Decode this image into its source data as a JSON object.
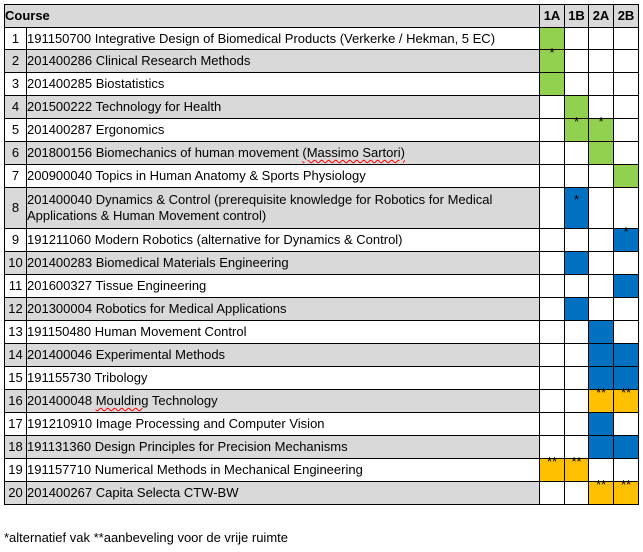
{
  "header": {
    "course": "Course",
    "quarters": [
      "1A",
      "1B",
      "2A",
      "2B"
    ]
  },
  "rows": [
    {
      "num": "1",
      "code": "191150700",
      "title": "Integrative Design of Biomedical Products (Verkerke / Hekman, 5 EC)",
      "cells": [
        "green",
        "",
        "",
        ""
      ],
      "marks": [
        "",
        "",
        "",
        ""
      ]
    },
    {
      "num": "2",
      "code": "201400286",
      "title": "Clinical Research Methods",
      "cells": [
        "green",
        "",
        "",
        ""
      ],
      "marks": [
        "*",
        "",
        "",
        ""
      ]
    },
    {
      "num": "3",
      "code": "201400285",
      "title": "Biostatistics",
      "cells": [
        "green",
        "",
        "",
        ""
      ],
      "marks": [
        "",
        "",
        "",
        ""
      ]
    },
    {
      "num": "4",
      "code": "201500222",
      "title": "Technology for Health",
      "cells": [
        "",
        "green",
        "",
        ""
      ],
      "marks": [
        "",
        "",
        "",
        ""
      ]
    },
    {
      "num": "5",
      "code": "201400287",
      "title": "Ergonomics",
      "cells": [
        "",
        "green",
        "green",
        ""
      ],
      "marks": [
        "",
        "*",
        "*",
        ""
      ]
    },
    {
      "num": "6",
      "code": "201800156",
      "title": "Biomechanics of human movement",
      "title_extra": "(Massimo Sartori)",
      "cells": [
        "",
        "",
        "green",
        ""
      ],
      "marks": [
        "",
        "",
        "",
        ""
      ]
    },
    {
      "num": "7",
      "code": "200900040",
      "title": "Topics in Human Anatomy & Sports Physiology",
      "cells": [
        "",
        "",
        "",
        "green"
      ],
      "marks": [
        "",
        "",
        "",
        ""
      ]
    },
    {
      "num": "8",
      "code": "201400040",
      "title": "Dynamics & Control (prerequisite knowledge for Robotics for Medical Applications & Human Movement control)",
      "cells": [
        "",
        "blue",
        "",
        ""
      ],
      "marks": [
        "",
        "*",
        "",
        ""
      ]
    },
    {
      "num": "9",
      "code": "191211060",
      "title": "Modern Robotics (alternative for Dynamics & Control)",
      "cells": [
        "",
        "",
        "",
        "blue"
      ],
      "marks": [
        "",
        "",
        "",
        "*"
      ]
    },
    {
      "num": "10",
      "code": "201400283",
      "title": "Biomedical Materials Engineering",
      "cells": [
        "",
        "blue",
        "",
        ""
      ],
      "marks": [
        "",
        "",
        "",
        ""
      ]
    },
    {
      "num": "11",
      "code": "201600327",
      "title": "Tissue Engineering",
      "cells": [
        "",
        "",
        "",
        "blue"
      ],
      "marks": [
        "",
        "",
        "",
        ""
      ]
    },
    {
      "num": "12",
      "code": "201300004",
      "title": "Robotics for Medical Applications",
      "cells": [
        "",
        "blue",
        "",
        ""
      ],
      "marks": [
        "",
        "",
        "",
        ""
      ]
    },
    {
      "num": "13",
      "code": "191150480",
      "title": "Human Movement Control",
      "cells": [
        "",
        "",
        "blue",
        ""
      ],
      "marks": [
        "",
        "",
        "",
        ""
      ]
    },
    {
      "num": "14",
      "code": "201400046",
      "title": "Experimental Methods",
      "cells": [
        "",
        "",
        "blue",
        "blue"
      ],
      "marks": [
        "",
        "",
        "",
        ""
      ]
    },
    {
      "num": "15",
      "code": "191155730",
      "title": "Tribology",
      "cells": [
        "",
        "",
        "blue",
        "blue"
      ],
      "marks": [
        "",
        "",
        "",
        ""
      ]
    },
    {
      "num": "16",
      "code": "201400048",
      "title": "Moulding",
      "title_rest": "Technology",
      "cells": [
        "",
        "",
        "orange",
        "orange"
      ],
      "marks": [
        "",
        "",
        "**",
        "**"
      ]
    },
    {
      "num": "17",
      "code": "191210910",
      "title": "Image Processing and Computer Vision",
      "cells": [
        "",
        "",
        "blue",
        ""
      ],
      "marks": [
        "",
        "",
        "",
        ""
      ]
    },
    {
      "num": "18",
      "code": "191131360",
      "title": "Design Principles for Precision Mechanisms",
      "cells": [
        "",
        "",
        "blue",
        "blue"
      ],
      "marks": [
        "",
        "",
        "",
        ""
      ]
    },
    {
      "num": "19",
      "code": "191157710",
      "title": "Numerical Methods in Mechanical Engineering",
      "cells": [
        "orange",
        "orange",
        "",
        ""
      ],
      "marks": [
        "**",
        "**",
        "",
        ""
      ]
    },
    {
      "num": "20",
      "code": "201400267",
      "title": "Capita Selecta CTW-BW",
      "cells": [
        "",
        "",
        "orange",
        "orange"
      ],
      "marks": [
        "",
        "",
        "**",
        "**"
      ]
    }
  ],
  "footnote": "*alternatief vak **aanbeveling voor de vrije ruimte",
  "colors": {
    "green": "#92d050",
    "blue": "#0070c0",
    "orange": "#ffc000",
    "gray": "#d9d9d9"
  }
}
